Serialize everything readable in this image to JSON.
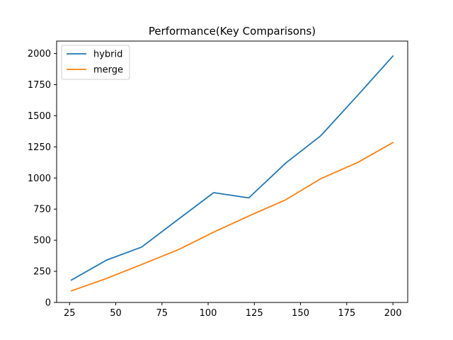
{
  "chart_data": {
    "type": "line",
    "title": "Performance(Key Comparisons)",
    "xlabel": "",
    "ylabel": "",
    "xlim": [
      18,
      208
    ],
    "ylim": [
      0,
      2100
    ],
    "xticks": [
      25,
      50,
      75,
      100,
      125,
      150,
      175,
      200
    ],
    "yticks": [
      0,
      250,
      500,
      750,
      1000,
      1250,
      1500,
      1750,
      2000
    ],
    "grid": false,
    "legend_position": "top-left",
    "series": [
      {
        "name": "hybrid",
        "color": "#1f77b4",
        "x": [
          26,
          45,
          64,
          84,
          103,
          122,
          142,
          161,
          181,
          200
        ],
        "y": [
          180,
          340,
          445,
          670,
          882,
          840,
          1120,
          1340,
          1665,
          1980
        ]
      },
      {
        "name": "merge",
        "color": "#ff7f0e",
        "x": [
          26,
          45,
          64,
          84,
          103,
          122,
          142,
          161,
          181,
          200
        ],
        "y": [
          93,
          193,
          305,
          425,
          565,
          695,
          825,
          995,
          1125,
          1285
        ]
      }
    ]
  }
}
